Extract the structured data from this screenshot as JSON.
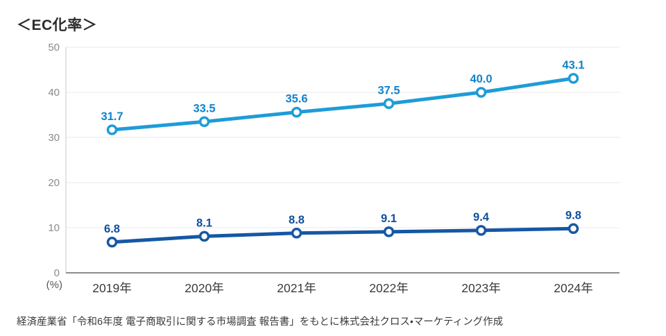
{
  "page": {
    "source_note": "経済産業省「令和6年度 電子商取引に関する市場調査 報告書」をもとに株式会社クロス・マーケティング作成"
  },
  "chart_data": {
    "type": "line",
    "title": "＜EC化率＞",
    "categories": [
      "2019年",
      "2020年",
      "2021年",
      "2022年",
      "2023年",
      "2024年"
    ],
    "series": [
      {
        "id": "series-upper",
        "values": [
          31.7,
          33.5,
          35.6,
          37.5,
          40.0,
          43.1
        ],
        "color": "#1E9CD7",
        "label_color": "#1283CB"
      },
      {
        "id": "series-lower",
        "values": [
          6.8,
          8.1,
          8.8,
          9.1,
          9.4,
          9.8
        ],
        "color": "#1558A3",
        "label_color": "#0F4F9C"
      }
    ],
    "ylabel": "(%)",
    "ylim": [
      0,
      50
    ],
    "yticks": [
      0,
      10,
      20,
      30,
      40,
      50
    ],
    "grid": true,
    "legend": "none",
    "value_labels": true
  }
}
